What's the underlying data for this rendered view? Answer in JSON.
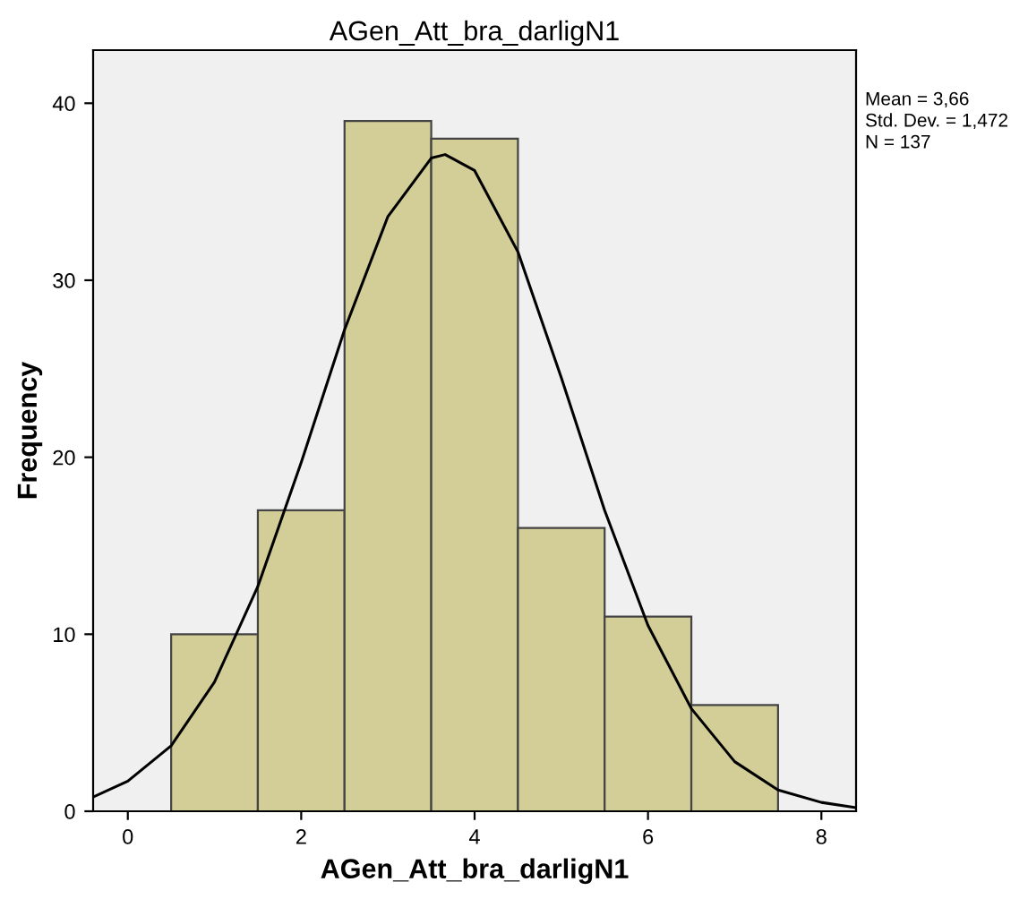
{
  "chart_data": {
    "type": "histogram",
    "title": "AGen_Att_bra_darligN1",
    "xlabel": "AGen_Att_bra_darligN1",
    "ylabel": "Frequency",
    "bins": [
      0.5,
      1.5,
      2.5,
      3.5,
      4.5,
      5.5,
      6.5,
      7.5
    ],
    "values": [
      10,
      17,
      39,
      38,
      16,
      11,
      6
    ],
    "color": "#d3ce97",
    "series": [
      {
        "type": "line",
        "color": "#000000",
        "x": [
          -0.4,
          0,
          0.5,
          1,
          1.5,
          2,
          2.5,
          3,
          3.5,
          3.66,
          4,
          4.5,
          5,
          5.5,
          6,
          6.5,
          7,
          7.5,
          8,
          8.4
        ],
        "values": [
          0.8,
          1.7,
          3.7,
          7.3,
          12.7,
          19.7,
          27.2,
          33.6,
          36.9,
          37.1,
          36.2,
          31.6,
          24.5,
          17.0,
          10.5,
          5.8,
          2.8,
          1.2,
          0.5,
          0.2
        ]
      }
    ],
    "xlim": [
      -0.4,
      8.4
    ],
    "ylim": [
      0,
      43
    ],
    "xticks": [
      0,
      2,
      4,
      6,
      8
    ],
    "yticks": [
      0,
      10,
      20,
      30,
      40
    ],
    "annotations": [
      "Mean = 3,66",
      "Std. Dev. = 1,472",
      "N = 137"
    ]
  }
}
